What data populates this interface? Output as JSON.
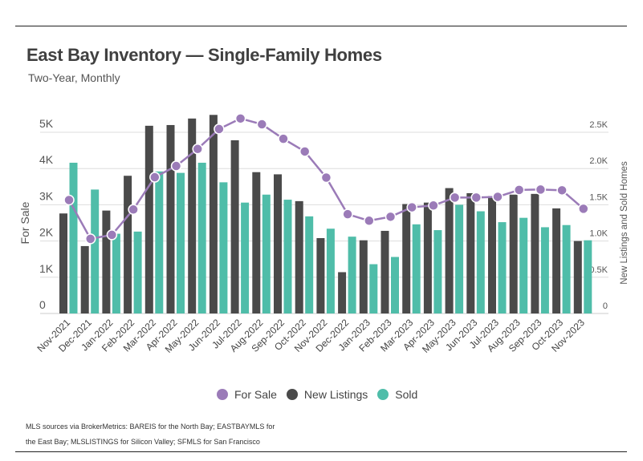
{
  "title": "East Bay Inventory — Single-Family Homes",
  "subtitle": "Two-Year, Monthly",
  "footnote": "MLS sources via BrokerMetrics: BAREIS for the North Bay; EASTBAYMLS for the East Bay; MLSLISTINGS for Silicon Valley; SFMLS for San Francisco",
  "chart_data": {
    "type": "bar",
    "title": "East Bay Inventory — Single-Family Homes",
    "subtitle": "Two-Year, Monthly",
    "categories": [
      "Nov-2021",
      "Dec-2021",
      "Jan-2022",
      "Feb-2022",
      "Mar-2022",
      "Apr-2022",
      "May-2022",
      "Jun-2022",
      "Jul-2022",
      "Aug-2022",
      "Sep-2022",
      "Oct-2022",
      "Nov-2022",
      "Dec-2022",
      "Jan-2023",
      "Feb-2023",
      "Mar-2023",
      "Apr-2023",
      "May-2023",
      "Jun-2023",
      "Jul-2023",
      "Aug-2023",
      "Sep-2023",
      "Oct-2023",
      "Nov-2023"
    ],
    "ylabel": "For Sale",
    "y2label": "New Listings and Sold Homes",
    "ylim": [
      0,
      5500
    ],
    "y2lim": [
      0,
      2750
    ],
    "yticks": [
      "0",
      "1K",
      "2K",
      "3K",
      "4K",
      "5K"
    ],
    "y2ticks": [
      "0",
      "0.5K",
      "1.0K",
      "1.5K",
      "2.0K",
      "2.5K"
    ],
    "grid": true,
    "legend": "bottom",
    "series": [
      {
        "name": "For Sale",
        "type": "line",
        "axis": "left",
        "color": "#9b7bb8",
        "values": [
          3130,
          2060,
          2170,
          2870,
          3760,
          4070,
          4540,
          5090,
          5380,
          5220,
          4820,
          4470,
          3750,
          2740,
          2560,
          2670,
          2930,
          2980,
          3200,
          3200,
          3220,
          3410,
          3420,
          3400,
          2890
        ]
      },
      {
        "name": "New Listings",
        "type": "bar",
        "axis": "right",
        "color": "#4a4a4a",
        "values": [
          1380,
          930,
          1420,
          1900,
          2590,
          2600,
          2690,
          2740,
          2390,
          1950,
          1920,
          1550,
          1040,
          570,
          1010,
          1140,
          1510,
          1530,
          1730,
          1660,
          1620,
          1640,
          1650,
          1450,
          1000
        ]
      },
      {
        "name": "Sold",
        "type": "bar",
        "axis": "right",
        "color": "#4fbda9",
        "values": [
          2080,
          1710,
          1100,
          1130,
          1960,
          1940,
          2080,
          1810,
          1530,
          1640,
          1570,
          1340,
          1170,
          1060,
          680,
          780,
          1230,
          1150,
          1500,
          1410,
          1260,
          1320,
          1190,
          1220,
          1010
        ]
      }
    ]
  }
}
